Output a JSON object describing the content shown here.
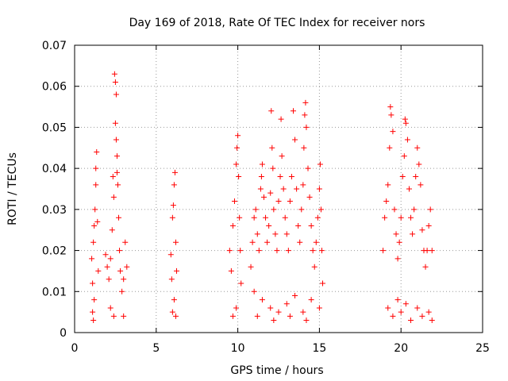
{
  "chart_data": {
    "type": "scatter",
    "title": "Day 169 of 2018, Rate Of TEC Index for receiver nors",
    "xlabel": "GPS time / hours",
    "ylabel": "ROTI / TECUs",
    "xlim": [
      0,
      25
    ],
    "ylim": [
      0,
      0.07
    ],
    "x_ticks": [
      "0",
      "5",
      "10",
      "15",
      "20",
      "25"
    ],
    "y_ticks": [
      "0",
      "0.01",
      "0.02",
      "0.03",
      "0.04",
      "0.05",
      "0.06",
      "0.07"
    ],
    "grid": true,
    "marker": "+",
    "color": "#ff0000",
    "series": [
      {
        "points": [
          [
            1.05,
            0.018
          ],
          [
            1.1,
            0.012
          ],
          [
            1.15,
            0.022
          ],
          [
            1.2,
            0.026
          ],
          [
            1.25,
            0.03
          ],
          [
            1.3,
            0.036
          ],
          [
            1.35,
            0.044
          ],
          [
            1.3,
            0.04
          ],
          [
            1.4,
            0.027
          ],
          [
            1.45,
            0.015
          ],
          [
            1.2,
            0.008
          ],
          [
            1.1,
            0.005
          ],
          [
            1.15,
            0.003
          ],
          [
            1.9,
            0.019
          ],
          [
            2.0,
            0.016
          ],
          [
            2.1,
            0.013
          ],
          [
            2.2,
            0.018
          ],
          [
            2.3,
            0.025
          ],
          [
            2.35,
            0.038
          ],
          [
            2.4,
            0.033
          ],
          [
            2.45,
            0.063
          ],
          [
            2.5,
            0.061
          ],
          [
            2.55,
            0.058
          ],
          [
            2.5,
            0.051
          ],
          [
            2.55,
            0.047
          ],
          [
            2.6,
            0.043
          ],
          [
            2.6,
            0.039
          ],
          [
            2.65,
            0.036
          ],
          [
            2.7,
            0.028
          ],
          [
            2.75,
            0.02
          ],
          [
            2.8,
            0.015
          ],
          [
            2.9,
            0.01
          ],
          [
            3.0,
            0.013
          ],
          [
            3.1,
            0.022
          ],
          [
            3.2,
            0.016
          ],
          [
            2.2,
            0.006
          ],
          [
            2.4,
            0.004
          ],
          [
            3.0,
            0.004
          ],
          [
            5.9,
            0.019
          ],
          [
            5.95,
            0.013
          ],
          [
            6.0,
            0.028
          ],
          [
            6.05,
            0.031
          ],
          [
            6.1,
            0.036
          ],
          [
            6.15,
            0.039
          ],
          [
            6.2,
            0.022
          ],
          [
            6.25,
            0.015
          ],
          [
            6.1,
            0.008
          ],
          [
            6.0,
            0.005
          ],
          [
            6.2,
            0.004
          ],
          [
            9.5,
            0.02
          ],
          [
            9.6,
            0.015
          ],
          [
            9.7,
            0.026
          ],
          [
            9.8,
            0.032
          ],
          [
            9.9,
            0.041
          ],
          [
            9.95,
            0.045
          ],
          [
            10.0,
            0.048
          ],
          [
            10.05,
            0.038
          ],
          [
            10.1,
            0.028
          ],
          [
            10.15,
            0.02
          ],
          [
            10.2,
            0.012
          ],
          [
            9.9,
            0.006
          ],
          [
            9.7,
            0.004
          ],
          [
            10.8,
            0.016
          ],
          [
            10.9,
            0.022
          ],
          [
            11.0,
            0.028
          ],
          [
            11.1,
            0.03
          ],
          [
            11.2,
            0.024
          ],
          [
            11.3,
            0.02
          ],
          [
            11.4,
            0.035
          ],
          [
            11.45,
            0.038
          ],
          [
            11.5,
            0.041
          ],
          [
            11.6,
            0.033
          ],
          [
            11.7,
            0.028
          ],
          [
            11.8,
            0.022
          ],
          [
            11.9,
            0.026
          ],
          [
            12.0,
            0.034
          ],
          [
            12.05,
            0.054
          ],
          [
            12.1,
            0.045
          ],
          [
            12.15,
            0.04
          ],
          [
            12.2,
            0.03
          ],
          [
            12.3,
            0.024
          ],
          [
            12.4,
            0.02
          ],
          [
            12.5,
            0.032
          ],
          [
            12.6,
            0.038
          ],
          [
            12.65,
            0.052
          ],
          [
            12.7,
            0.043
          ],
          [
            12.8,
            0.035
          ],
          [
            12.9,
            0.028
          ],
          [
            13.0,
            0.024
          ],
          [
            13.1,
            0.02
          ],
          [
            13.2,
            0.032
          ],
          [
            13.3,
            0.038
          ],
          [
            13.4,
            0.054
          ],
          [
            13.5,
            0.047
          ],
          [
            13.6,
            0.035
          ],
          [
            13.7,
            0.026
          ],
          [
            13.8,
            0.022
          ],
          [
            13.9,
            0.03
          ],
          [
            14.0,
            0.036
          ],
          [
            14.05,
            0.045
          ],
          [
            14.1,
            0.053
          ],
          [
            14.15,
            0.056
          ],
          [
            14.2,
            0.05
          ],
          [
            14.3,
            0.04
          ],
          [
            14.4,
            0.033
          ],
          [
            14.5,
            0.026
          ],
          [
            14.6,
            0.02
          ],
          [
            14.7,
            0.016
          ],
          [
            14.8,
            0.022
          ],
          [
            14.9,
            0.028
          ],
          [
            15.0,
            0.035
          ],
          [
            15.05,
            0.041
          ],
          [
            15.1,
            0.03
          ],
          [
            15.15,
            0.02
          ],
          [
            15.2,
            0.012
          ],
          [
            11.0,
            0.01
          ],
          [
            11.5,
            0.008
          ],
          [
            12.0,
            0.006
          ],
          [
            12.5,
            0.005
          ],
          [
            13.0,
            0.007
          ],
          [
            13.5,
            0.009
          ],
          [
            14.0,
            0.005
          ],
          [
            14.5,
            0.008
          ],
          [
            15.0,
            0.006
          ],
          [
            11.2,
            0.004
          ],
          [
            12.2,
            0.003
          ],
          [
            13.2,
            0.004
          ],
          [
            14.2,
            0.003
          ],
          [
            18.9,
            0.02
          ],
          [
            19.0,
            0.028
          ],
          [
            19.1,
            0.032
          ],
          [
            19.2,
            0.036
          ],
          [
            19.3,
            0.045
          ],
          [
            19.35,
            0.055
          ],
          [
            19.4,
            0.053
          ],
          [
            19.5,
            0.049
          ],
          [
            19.6,
            0.03
          ],
          [
            19.7,
            0.024
          ],
          [
            19.8,
            0.018
          ],
          [
            19.9,
            0.022
          ],
          [
            20.0,
            0.028
          ],
          [
            20.1,
            0.038
          ],
          [
            20.2,
            0.043
          ],
          [
            20.25,
            0.052
          ],
          [
            20.3,
            0.051
          ],
          [
            20.4,
            0.047
          ],
          [
            20.5,
            0.035
          ],
          [
            20.6,
            0.028
          ],
          [
            20.7,
            0.024
          ],
          [
            20.8,
            0.03
          ],
          [
            20.9,
            0.038
          ],
          [
            21.0,
            0.045
          ],
          [
            21.1,
            0.041
          ],
          [
            21.2,
            0.036
          ],
          [
            21.3,
            0.025
          ],
          [
            21.4,
            0.02
          ],
          [
            21.5,
            0.016
          ],
          [
            21.6,
            0.02
          ],
          [
            21.7,
            0.026
          ],
          [
            21.8,
            0.03
          ],
          [
            21.9,
            0.02
          ],
          [
            19.2,
            0.006
          ],
          [
            19.5,
            0.004
          ],
          [
            19.8,
            0.008
          ],
          [
            20.0,
            0.005
          ],
          [
            20.3,
            0.007
          ],
          [
            20.6,
            0.003
          ],
          [
            21.0,
            0.006
          ],
          [
            21.3,
            0.004
          ],
          [
            21.7,
            0.005
          ],
          [
            21.9,
            0.003
          ]
        ]
      }
    ]
  }
}
